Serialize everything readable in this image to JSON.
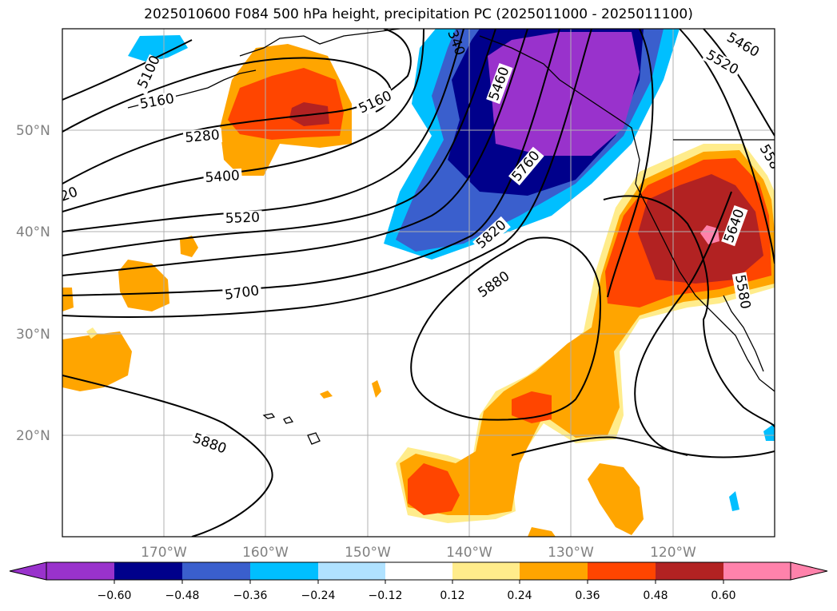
{
  "title": "2025010600 F084 500 hPa height, precipitation PC (2025011000 - 2025011100)",
  "map": {
    "lat_labels": [
      "50°N",
      "40°N",
      "30°N",
      "20°N"
    ],
    "lon_labels": [
      "170°W",
      "160°W",
      "150°W",
      "140°W",
      "130°W",
      "120°W"
    ],
    "contour_labels": [
      "5100",
      "5160",
      "5160",
      "5280",
      "5400",
      "5520",
      "5700",
      "5880",
      "5880",
      "5820",
      "5760",
      "5460",
      "5520",
      "5460",
      "5640",
      "5580",
      "340",
      "20",
      "558"
    ]
  },
  "colorbar": {
    "ticks": [
      "−0.60",
      "−0.48",
      "−0.36",
      "−0.24",
      "−0.12",
      "0.12",
      "0.24",
      "0.36",
      "0.48",
      "0.60"
    ],
    "colors": [
      "#9932cc",
      "#00008b",
      "#3a5fcd",
      "#00bfff",
      "#b0e2ff",
      "#ffffff",
      "#ffec8b",
      "#ffa500",
      "#ff4500",
      "#b22222",
      "#ff82ab"
    ]
  }
}
